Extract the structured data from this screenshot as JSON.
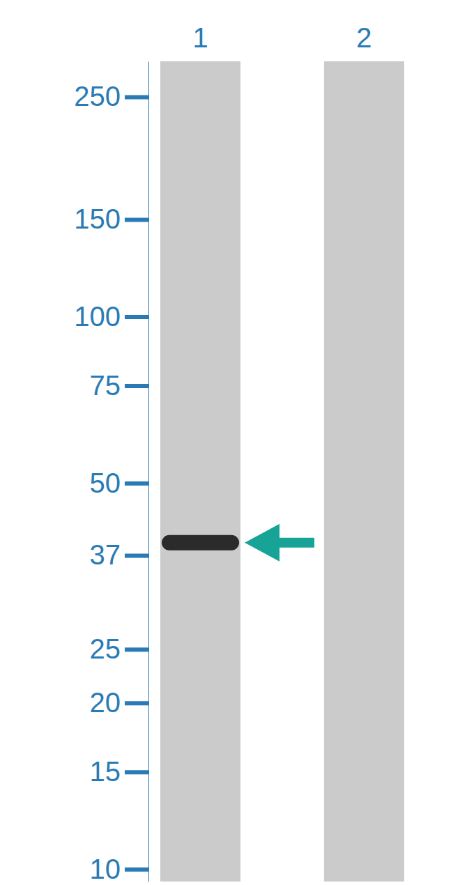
{
  "chart_data": {
    "type": "blot",
    "categories": [
      "1",
      "2"
    ],
    "values": [
      39,
      null
    ],
    "ylim": [
      290,
      9.5
    ],
    "yticks": [
      250,
      150,
      100,
      75,
      50,
      37,
      25,
      20,
      15,
      10
    ],
    "log": "y",
    "color": "#2b2b2b"
  }
}
